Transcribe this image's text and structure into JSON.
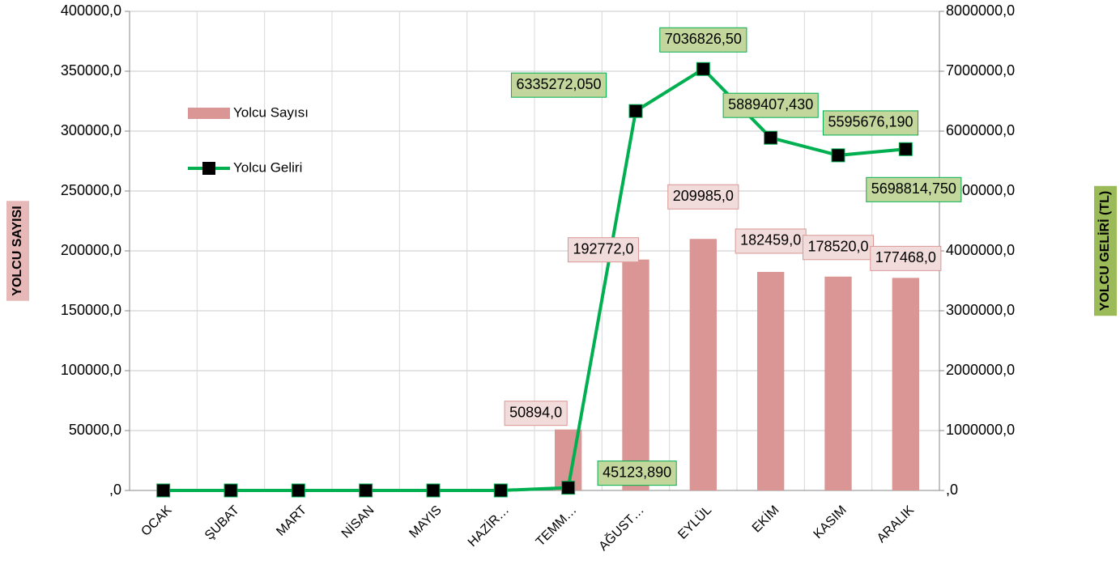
{
  "chart_data": {
    "type": "bar",
    "y_label": "YOLCU SAYISI",
    "y2_label": "YOLCU GELİRİ (TL)",
    "categories": [
      "OCAK",
      "ŞUBAT",
      "MART",
      "NİSAN",
      "MAYIS",
      "HAZİR…",
      "TEMM…",
      "AĞUST…",
      "EYLÜL",
      "EKİM",
      "KASIM",
      "ARALIK"
    ],
    "series": [
      {
        "name": "Yolcu Sayısı",
        "type": "bar",
        "color": "#d99694",
        "values": [
          0,
          0,
          0,
          0,
          0,
          0,
          50894,
          192772,
          209985,
          182459,
          178520,
          177468
        ],
        "value_labels": [
          null,
          null,
          null,
          null,
          null,
          null,
          "50894,0",
          "192772,0",
          "209985,0",
          "182459,0",
          "178520,0",
          "177468,0"
        ]
      },
      {
        "name": "Yolcu Geliri",
        "type": "line",
        "axis": "y2",
        "color": "#00b050",
        "values": [
          0,
          0,
          0,
          0,
          0,
          0,
          45123.89,
          6335272.05,
          7036826.5,
          5889407.43,
          5595676.19,
          5698814.75
        ],
        "value_labels": [
          null,
          null,
          null,
          null,
          null,
          null,
          "45123,890",
          "6335272,050",
          "7036826,50",
          "5889407,430",
          "5595676,190",
          "5698814,750"
        ]
      }
    ],
    "ylim": [
      0,
      400000
    ],
    "yticks": [
      {
        "value": 0,
        "label": ",0"
      },
      {
        "value": 50000,
        "label": "50000,0"
      },
      {
        "value": 100000,
        "label": "100000,0"
      },
      {
        "value": 150000,
        "label": "150000,0"
      },
      {
        "value": 200000,
        "label": "200000,0"
      },
      {
        "value": 250000,
        "label": "250000,0"
      },
      {
        "value": 300000,
        "label": "300000,0"
      },
      {
        "value": 350000,
        "label": "350000,0"
      },
      {
        "value": 400000,
        "label": "400000,0"
      }
    ],
    "y2lim": [
      0,
      8000000
    ],
    "y2ticks": [
      {
        "value": 0,
        "label": ",0"
      },
      {
        "value": 1000000,
        "label": "1000000,0"
      },
      {
        "value": 2000000,
        "label": "2000000,0"
      },
      {
        "value": 3000000,
        "label": "3000000,0"
      },
      {
        "value": 4000000,
        "label": "4000000,0"
      },
      {
        "value": 5000000,
        "label": "5000000,0"
      },
      {
        "value": 6000000,
        "label": "6000000,0"
      },
      {
        "value": 7000000,
        "label": "7000000,0"
      },
      {
        "value": 8000000,
        "label": "8000000,0"
      }
    ],
    "grid": true
  }
}
